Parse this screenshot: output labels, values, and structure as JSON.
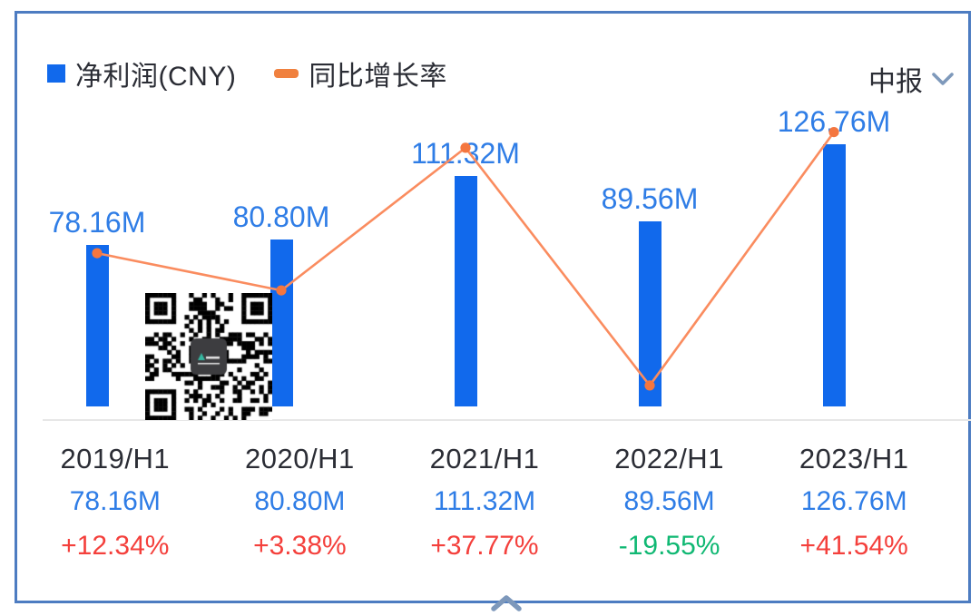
{
  "legend": {
    "items": [
      {
        "label": "净利润(CNY)",
        "swatch": "square",
        "color": "#1169ec"
      },
      {
        "label": "同比增长率",
        "swatch": "dash",
        "color": "#f0813f"
      }
    ]
  },
  "period_selector": {
    "value": "中报",
    "icon": "chevron-down-icon"
  },
  "chart_data": {
    "type": "bar",
    "subtype": "bar+line combo",
    "categories": [
      "2019/H1",
      "2020/H1",
      "2021/H1",
      "2022/H1",
      "2023/H1"
    ],
    "series": [
      {
        "name": "净利润(CNY)",
        "type": "bar",
        "values": [
          78160000,
          80800000,
          111320000,
          89560000,
          126760000
        ],
        "labels": [
          "78.16M",
          "80.80M",
          "111.32M",
          "89.56M",
          "126.76M"
        ],
        "color": "#1169ec"
      },
      {
        "name": "同比增长率",
        "type": "line",
        "values": [
          12.34,
          3.38,
          37.77,
          -19.55,
          41.54
        ],
        "labels": [
          "+12.34%",
          "+3.38%",
          "+37.77%",
          "-19.55%",
          "+41.54%"
        ],
        "color": "#fa8c5f",
        "marker_color": "#f4763f"
      }
    ],
    "title": "",
    "xlabel": "",
    "ylabel": "",
    "grid": false,
    "legend_position": "top-left",
    "value_label_color": "#2f7de6",
    "overlay": "qr-code watermark over chart between first and second bars"
  },
  "table": {
    "rows": [
      {
        "period": "2019/H1",
        "value": "78.16M",
        "growth": "+12.34%",
        "growth_direction": "up"
      },
      {
        "period": "2020/H1",
        "value": "80.80M",
        "growth": "+3.38%",
        "growth_direction": "up"
      },
      {
        "period": "2021/H1",
        "value": "111.32M",
        "growth": "+37.77%",
        "growth_direction": "up"
      },
      {
        "period": "2022/H1",
        "value": "89.56M",
        "growth": "-19.55%",
        "growth_direction": "down"
      },
      {
        "period": "2023/H1",
        "value": "126.76M",
        "growth": "+41.54%",
        "growth_direction": "up"
      }
    ]
  },
  "footer": {
    "collapse_icon": "chevron-up-icon"
  },
  "colors": {
    "bar": "#1169ec",
    "line": "#fa8c5f",
    "marker": "#f4763f",
    "value_label": "#2f7de6",
    "up_red": "#f4403c",
    "down_green": "#10b873",
    "dark_text": "#2b2d35",
    "card_border": "#4d7cc1",
    "axis_line": "#e7e7e7",
    "chevron": "#7e99bb"
  }
}
